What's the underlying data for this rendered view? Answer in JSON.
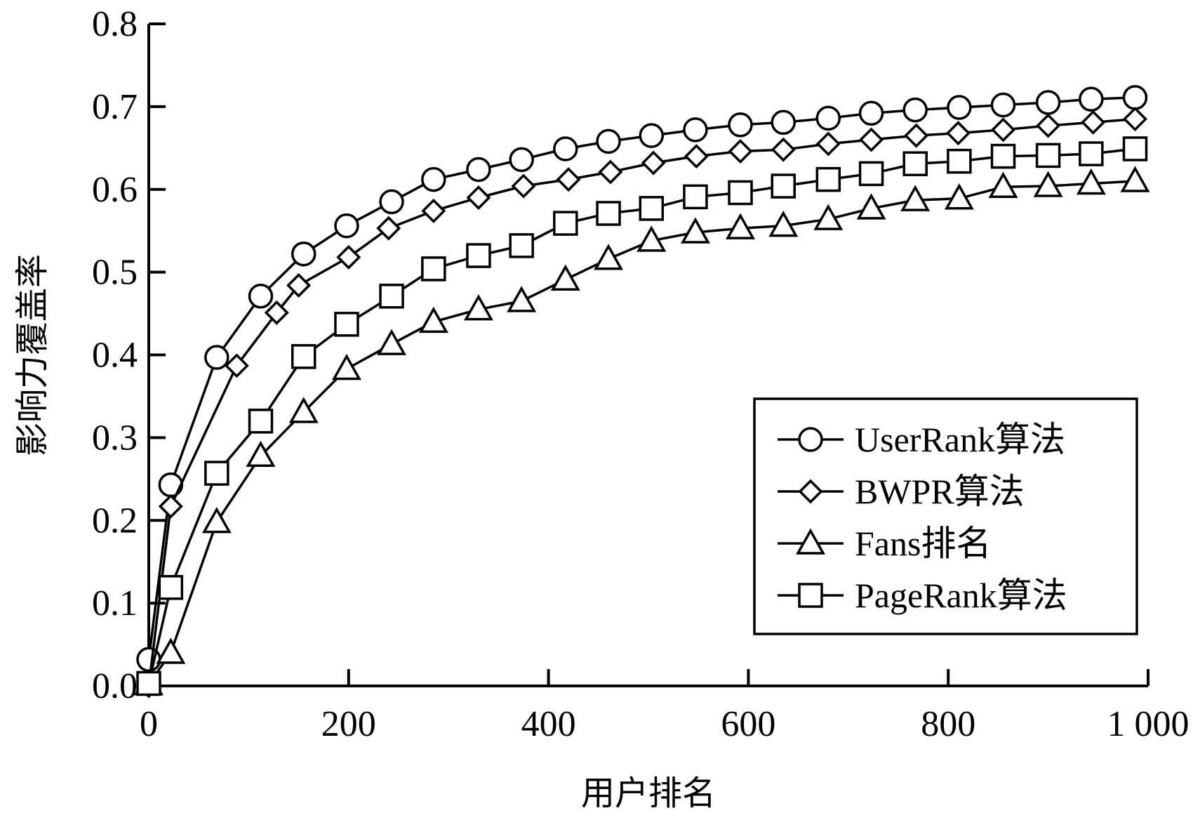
{
  "chart_data": {
    "type": "line",
    "xlabel": "用户排名",
    "ylabel": "影响力覆盖率",
    "xlim": [
      0,
      1000
    ],
    "ylim": [
      0,
      0.8
    ],
    "xticks": [
      0,
      200,
      400,
      600,
      800,
      1000
    ],
    "xtick_labels": [
      "0",
      "200",
      "400",
      "600",
      "800",
      "1 000"
    ],
    "yticks": [
      0,
      0.1,
      0.2,
      0.3,
      0.4,
      0.5,
      0.6,
      0.7,
      0.8
    ],
    "ytick_labels": [
      "0.0",
      "0.1",
      "0.2",
      "0.3",
      "0.4",
      "0.5",
      "0.6",
      "0.7",
      "0.8"
    ],
    "grid": false,
    "legend_position": "bottom-right",
    "series": [
      {
        "name": "UserRank算法",
        "marker": "circle",
        "points": [
          [
            0,
            0.032
          ],
          [
            22,
            0.243
          ],
          [
            68,
            0.397
          ],
          [
            112,
            0.471
          ],
          [
            155,
            0.522
          ],
          [
            198,
            0.556
          ],
          [
            243,
            0.585
          ],
          [
            285,
            0.612
          ],
          [
            330,
            0.624
          ],
          [
            373,
            0.636
          ],
          [
            417,
            0.649
          ],
          [
            460,
            0.658
          ],
          [
            503,
            0.665
          ],
          [
            547,
            0.672
          ],
          [
            592,
            0.678
          ],
          [
            635,
            0.681
          ],
          [
            680,
            0.686
          ],
          [
            723,
            0.692
          ],
          [
            767,
            0.696
          ],
          [
            811,
            0.699
          ],
          [
            855,
            0.702
          ],
          [
            900,
            0.705
          ],
          [
            943,
            0.709
          ],
          [
            987,
            0.711
          ]
        ]
      },
      {
        "name": "BWPR算法",
        "marker": "diamond",
        "points": [
          [
            0,
            0.0
          ],
          [
            22,
            0.217
          ],
          [
            88,
            0.387
          ],
          [
            128,
            0.451
          ],
          [
            150,
            0.484
          ],
          [
            200,
            0.518
          ],
          [
            240,
            0.553
          ],
          [
            285,
            0.574
          ],
          [
            330,
            0.59
          ],
          [
            375,
            0.604
          ],
          [
            420,
            0.612
          ],
          [
            462,
            0.621
          ],
          [
            505,
            0.632
          ],
          [
            548,
            0.64
          ],
          [
            592,
            0.646
          ],
          [
            635,
            0.648
          ],
          [
            680,
            0.655
          ],
          [
            723,
            0.66
          ],
          [
            768,
            0.665
          ],
          [
            810,
            0.668
          ],
          [
            855,
            0.672
          ],
          [
            900,
            0.677
          ],
          [
            945,
            0.681
          ],
          [
            987,
            0.685
          ]
        ]
      },
      {
        "name": "Fans排名",
        "marker": "triangle",
        "points": [
          [
            0,
            0.002
          ],
          [
            22,
            0.04
          ],
          [
            68,
            0.198
          ],
          [
            112,
            0.278
          ],
          [
            155,
            0.331
          ],
          [
            198,
            0.383
          ],
          [
            243,
            0.413
          ],
          [
            285,
            0.44
          ],
          [
            330,
            0.455
          ],
          [
            373,
            0.465
          ],
          [
            417,
            0.491
          ],
          [
            460,
            0.516
          ],
          [
            503,
            0.538
          ],
          [
            547,
            0.548
          ],
          [
            592,
            0.553
          ],
          [
            635,
            0.556
          ],
          [
            680,
            0.564
          ],
          [
            723,
            0.577
          ],
          [
            767,
            0.587
          ],
          [
            811,
            0.589
          ],
          [
            855,
            0.603
          ],
          [
            900,
            0.604
          ],
          [
            943,
            0.607
          ],
          [
            987,
            0.61
          ]
        ]
      },
      {
        "name": "PageRank算法",
        "marker": "square",
        "points": [
          [
            0,
            0.003
          ],
          [
            22,
            0.119
          ],
          [
            68,
            0.257
          ],
          [
            112,
            0.32
          ],
          [
            155,
            0.398
          ],
          [
            198,
            0.437
          ],
          [
            243,
            0.471
          ],
          [
            285,
            0.504
          ],
          [
            330,
            0.52
          ],
          [
            373,
            0.532
          ],
          [
            417,
            0.559
          ],
          [
            460,
            0.571
          ],
          [
            503,
            0.577
          ],
          [
            547,
            0.591
          ],
          [
            592,
            0.596
          ],
          [
            635,
            0.604
          ],
          [
            680,
            0.612
          ],
          [
            723,
            0.619
          ],
          [
            767,
            0.631
          ],
          [
            811,
            0.634
          ],
          [
            855,
            0.64
          ],
          [
            900,
            0.641
          ],
          [
            943,
            0.643
          ],
          [
            987,
            0.649
          ]
        ]
      }
    ]
  }
}
